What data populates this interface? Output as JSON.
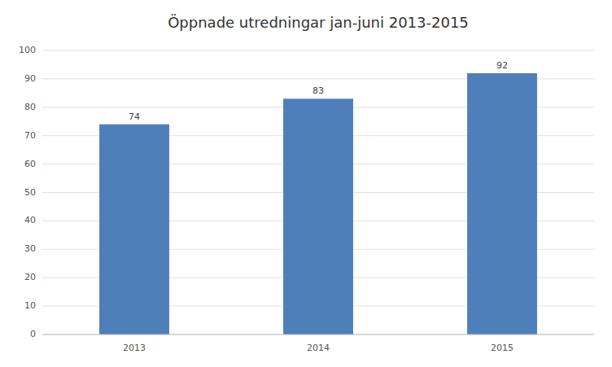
{
  "chart_data": {
    "type": "bar",
    "title": "Öppnade utredningar jan-juni 2013-2015",
    "categories": [
      "2013",
      "2014",
      "2015"
    ],
    "values": [
      74,
      83,
      92
    ],
    "color": "#4e7fbb",
    "ylim": [
      0,
      100
    ],
    "yticks": [
      0,
      10,
      20,
      30,
      40,
      50,
      60,
      70,
      80,
      90,
      100
    ],
    "grid": true,
    "data_labels": true
  }
}
